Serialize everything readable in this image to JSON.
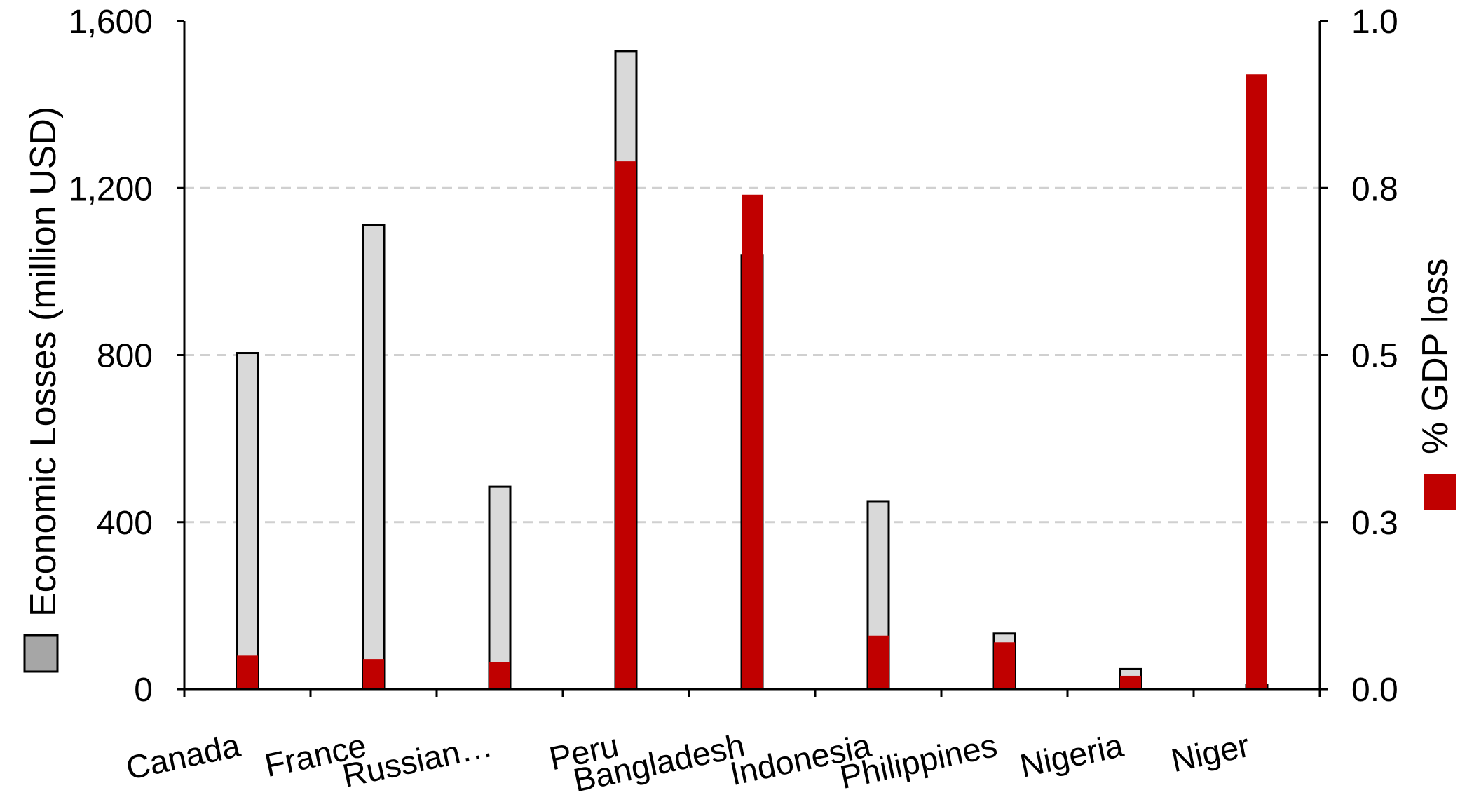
{
  "chart_data": {
    "type": "bar",
    "categories": [
      "Canada",
      "France",
      "Russian…",
      "Peru",
      "Bangladesh",
      "Indonesia",
      "Philippines",
      "Nigeria",
      "Niger"
    ],
    "series": [
      {
        "name": "Economic Losses (million USD)",
        "axis": "left",
        "color": "#d9d9d9",
        "values": [
          805,
          1112,
          485,
          1528,
          1038,
          450,
          133,
          48,
          10
        ]
      },
      {
        "name": "% GDP loss",
        "axis": "right",
        "color": "#c00000",
        "values": [
          0.05,
          0.045,
          0.04,
          0.79,
          0.74,
          0.08,
          0.07,
          0.02,
          0.92
        ]
      }
    ],
    "ylabel_left": "Economic Losses (million USD)",
    "ylabel_right": "% GDP loss",
    "ylim_left": [
      0,
      1600
    ],
    "ylim_right": [
      0,
      1.0
    ],
    "yticks_left": [
      "0",
      "400",
      "800",
      "1,200",
      "1,600"
    ],
    "yticks_right": [
      "0.0",
      "0.3",
      "0.5",
      "0.8",
      "1.0"
    ],
    "grid": true
  }
}
